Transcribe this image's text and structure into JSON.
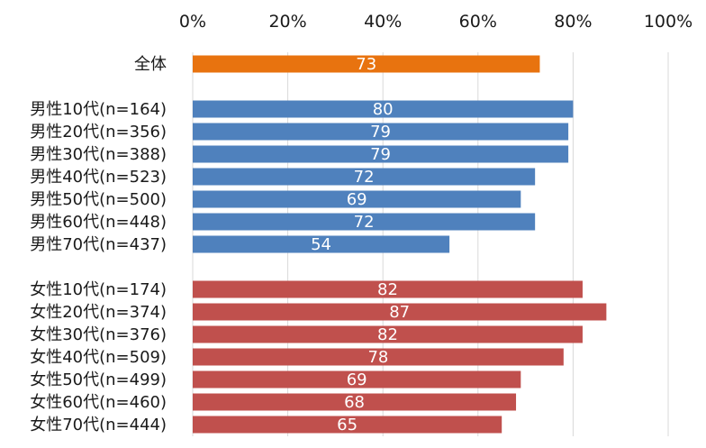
{
  "chart_data": {
    "type": "bar",
    "orientation": "horizontal",
    "xlim": [
      0,
      100
    ],
    "x_ticks": [
      "0%",
      "20%",
      "40%",
      "60%",
      "80%",
      "100%"
    ],
    "x_tick_values": [
      0,
      20,
      40,
      60,
      80,
      100
    ],
    "grid": true,
    "data_labels": true,
    "colors": {
      "overall": "#E8730F",
      "male": "#4F81BD",
      "female": "#C0504D"
    },
    "groups": [
      {
        "key": "overall",
        "categories": [
          "全体"
        ],
        "values": [
          73
        ]
      },
      {
        "key": "male",
        "categories": [
          "男性10代(n=164)",
          "男性20代(n=356)",
          "男性30代(n=388)",
          "男性40代(n=523)",
          "男性50代(n=500)",
          "男性60代(n=448)",
          "男性70代(n=437)"
        ],
        "values": [
          80,
          79,
          79,
          72,
          69,
          72,
          54
        ]
      },
      {
        "key": "female",
        "categories": [
          "女性10代(n=174)",
          "女性20代(n=374)",
          "女性30代(n=376)",
          "女性40代(n=509)",
          "女性50代(n=499)",
          "女性60代(n=460)",
          "女性70代(n=444)"
        ],
        "values": [
          82,
          87,
          82,
          78,
          69,
          68,
          65
        ]
      }
    ]
  }
}
